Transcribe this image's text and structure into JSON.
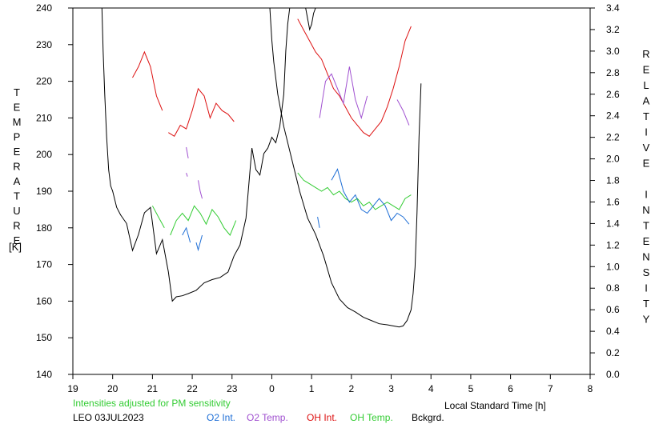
{
  "chart_data": {
    "type": "line",
    "left_axis_label": "TEMPERATURE",
    "left_axis_unit": "[K]",
    "right_axis_label": "RELATIVE INTENSITY",
    "xlabel": "Local Standard Time [h]",
    "x_ticks": [
      "19",
      "20",
      "21",
      "22",
      "23",
      "0",
      "1",
      "2",
      "3",
      "4",
      "5",
      "6",
      "7",
      "8"
    ],
    "xlim": [
      19,
      32
    ],
    "ylim_left": [
      140,
      240
    ],
    "y_ticks_left": [
      "140",
      "150",
      "160",
      "170",
      "180",
      "190",
      "200",
      "210",
      "220",
      "230",
      "240"
    ],
    "ylim_right": [
      0.0,
      3.4
    ],
    "y_ticks_right": [
      "0.0",
      "0.2",
      "0.4",
      "0.6",
      "0.8",
      "1.0",
      "1.2",
      "1.4",
      "1.6",
      "1.8",
      "2.0",
      "2.2",
      "2.4",
      "2.6",
      "2.8",
      "3.0",
      "3.2",
      "3.4"
    ],
    "grid": false,
    "note": "Intensities adjusted for PM sensitivity",
    "station": "LEO 03JUL2023",
    "legend": [
      {
        "name": "O2 Int.",
        "color": "#1f6fd6"
      },
      {
        "name": "O2 Temp.",
        "color": "#a050d0"
      },
      {
        "name": "OH Int.",
        "color": "#dd1111"
      },
      {
        "name": "OH Temp.",
        "color": "#33cc33"
      },
      {
        "name": "Bckgrd.",
        "color": "#000000"
      }
    ],
    "series": [
      {
        "name": "OH Int.",
        "axis": "left",
        "color": "#dd1111",
        "segments": [
          {
            "x": [
              20.5,
              20.65,
              20.8,
              20.95,
              21.1,
              21.25
            ],
            "y": [
              221,
              224,
              228,
              224,
              216,
              212
            ]
          },
          {
            "x": [
              21.4,
              21.55,
              21.7,
              21.85,
              22.0,
              22.15,
              22.3,
              22.45,
              22.6,
              22.75,
              22.9,
              23.05
            ],
            "y": [
              206,
              205,
              208,
              207,
              212,
              218,
              216,
              210,
              214,
              212,
              211,
              209
            ]
          },
          {
            "x": [
              24.65,
              24.8,
              24.95,
              25.1,
              25.25,
              25.4,
              25.55,
              25.7,
              25.85,
              26.0,
              26.15,
              26.3,
              26.45,
              26.6,
              26.75,
              26.9,
              27.05,
              27.2,
              27.35,
              27.5
            ],
            "y": [
              237,
              234,
              231,
              228,
              226,
              222,
              218,
              216,
              213,
              210,
              208,
              206,
              205,
              207,
              209,
              213,
              218,
              224,
              231,
              235
            ]
          }
        ]
      },
      {
        "name": "OH Temp.",
        "axis": "left",
        "color": "#33cc33",
        "segments": [
          {
            "x": [
              21.0,
              21.15,
              21.3
            ],
            "y": [
              186,
              183,
              180
            ]
          },
          {
            "x": [
              21.45,
              21.6,
              21.75,
              21.9,
              22.05,
              22.2,
              22.35,
              22.5,
              22.65,
              22.8,
              22.95,
              23.1
            ],
            "y": [
              178,
              182,
              184,
              182,
              186,
              184,
              181,
              185,
              183,
              180,
              178,
              182
            ]
          },
          {
            "x": [
              24.65,
              24.8,
              24.95,
              25.1,
              25.25,
              25.4,
              25.55,
              25.7,
              25.85,
              26.0,
              26.15,
              26.3,
              26.45,
              26.6,
              26.75,
              26.9,
              27.05,
              27.2,
              27.35,
              27.5
            ],
            "y": [
              195,
              193,
              192,
              191,
              190,
              191,
              189,
              190,
              188,
              187,
              188,
              186,
              187,
              185,
              186,
              187,
              186,
              185,
              188,
              189
            ]
          }
        ]
      },
      {
        "name": "O2 Temp.",
        "axis": "left",
        "color": "#a050d0",
        "segments": [
          {
            "x": [
              21.85,
              21.9
            ],
            "y": [
              202,
              199
            ]
          },
          {
            "x": [
              21.85,
              21.88
            ],
            "y": [
              195,
              194
            ]
          },
          {
            "x": [
              22.15,
              22.2,
              22.25
            ],
            "y": [
              193,
              190,
              188
            ]
          },
          {
            "x": [
              25.2,
              25.35,
              25.5,
              25.65,
              25.8,
              25.95,
              26.1,
              26.25,
              26.4
            ],
            "y": [
              210,
              220,
              222,
              218,
              214,
              224,
              215,
              210,
              216
            ]
          },
          {
            "x": [
              27.15,
              27.3,
              27.45
            ],
            "y": [
              215,
              212,
              208
            ]
          }
        ]
      },
      {
        "name": "O2 Int.",
        "axis": "left",
        "color": "#1f6fd6",
        "segments": [
          {
            "x": [
              21.75,
              21.85,
              21.95
            ],
            "y": [
              178,
              180,
              176
            ]
          },
          {
            "x": [
              22.1,
              22.15,
              22.25
            ],
            "y": [
              176,
              174,
              178
            ]
          },
          {
            "x": [
              25.15,
              25.2
            ],
            "y": [
              183,
              180
            ]
          },
          {
            "x": [
              25.5,
              25.65,
              25.8,
              25.95,
              26.1,
              26.25,
              26.4,
              26.55,
              26.7,
              26.85,
              27.0,
              27.15,
              27.3,
              27.45
            ],
            "y": [
              193,
              196,
              190,
              187,
              189,
              185,
              184,
              186,
              188,
              186,
              182,
              184,
              183,
              181
            ]
          }
        ]
      },
      {
        "name": "Bckgrd.",
        "axis": "right",
        "color": "#000000",
        "segments": [
          {
            "x": [
              19.73,
              19.76,
              19.8,
              19.85,
              19.9,
              19.95,
              20.0,
              20.1,
              20.2,
              20.35,
              20.5,
              20.65,
              20.8,
              20.95,
              21.1,
              21.25,
              21.4,
              21.5,
              21.6,
              21.75,
              21.9,
              22.1,
              22.3,
              22.5,
              22.7,
              22.9,
              23.05,
              23.2,
              23.35,
              23.5,
              23.6,
              23.7,
              23.8,
              23.9,
              24.0,
              24.1,
              24.2,
              24.3,
              24.35,
              24.4,
              24.45
            ],
            "y": [
              3.4,
              3.0,
              2.6,
              2.2,
              1.9,
              1.75,
              1.7,
              1.55,
              1.48,
              1.4,
              1.15,
              1.3,
              1.5,
              1.55,
              1.12,
              1.25,
              0.95,
              0.68,
              0.72,
              0.73,
              0.75,
              0.78,
              0.85,
              0.88,
              0.9,
              0.95,
              1.1,
              1.2,
              1.45,
              2.1,
              1.9,
              1.85,
              2.05,
              2.1,
              2.2,
              2.15,
              2.3,
              2.6,
              3.0,
              3.25,
              3.4
            ]
          },
          {
            "x": [
              24.85,
              24.9,
              24.95,
              25.0,
              25.05,
              25.1,
              25.15
            ],
            "y": [
              3.4,
              3.3,
              3.2,
              3.25,
              3.35,
              3.4,
              3.4
            ]
          },
          {
            "x": [
              23.95,
              24.0,
              24.05,
              24.15,
              24.3,
              24.5,
              24.7,
              24.9,
              25.1,
              25.3,
              25.5,
              25.7,
              25.9,
              26.1,
              26.3,
              26.5,
              26.7,
              26.9,
              27.05,
              27.2,
              27.3,
              27.4,
              27.5,
              27.55,
              27.6,
              27.65,
              27.7,
              27.75
            ],
            "y": [
              3.4,
              3.1,
              2.9,
              2.6,
              2.3,
              2.0,
              1.7,
              1.45,
              1.3,
              1.1,
              0.85,
              0.7,
              0.62,
              0.58,
              0.53,
              0.5,
              0.47,
              0.46,
              0.45,
              0.44,
              0.45,
              0.5,
              0.6,
              0.75,
              1.0,
              1.5,
              2.2,
              2.7
            ]
          }
        ]
      }
    ]
  }
}
